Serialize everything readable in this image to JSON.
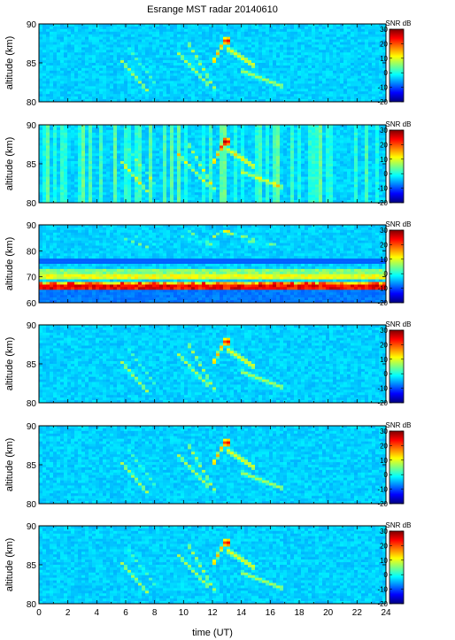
{
  "title": "Esrange MST radar 20140610",
  "xlabel": "time (UT)",
  "xticks": [
    "0",
    "2",
    "4",
    "6",
    "8",
    "10",
    "12",
    "14",
    "16",
    "18",
    "20",
    "22",
    "24"
  ],
  "colorbar": {
    "label": "SNR dB",
    "ticks": [
      "30",
      "20",
      "10",
      "0",
      "-10",
      "-20"
    ],
    "colors": [
      "#00007f",
      "#0000ff",
      "#007fff",
      "#00ffff",
      "#7fff7f",
      "#ffff00",
      "#ff7f00",
      "#ff0000",
      "#7f0000"
    ]
  },
  "chart_data": [
    {
      "type": "heatmap",
      "ylabel": "altitude (km)",
      "yticks": [
        "90",
        "85",
        "80"
      ],
      "ylim": [
        80,
        90
      ],
      "xlim": [
        0,
        24
      ],
      "clim": [
        -20,
        30
      ],
      "colorbar_label": "SNR dB"
    },
    {
      "type": "heatmap",
      "ylabel": "altitude (km)",
      "yticks": [
        "90",
        "85",
        "80"
      ],
      "ylim": [
        80,
        90
      ],
      "xlim": [
        0,
        24
      ],
      "clim": [
        -20,
        30
      ],
      "colorbar_label": "SNR dB"
    },
    {
      "type": "heatmap",
      "ylabel": "altitude (km)",
      "yticks": [
        "90",
        "80",
        "70",
        "60"
      ],
      "ylim": [
        60,
        90
      ],
      "xlim": [
        0,
        24
      ],
      "clim": [
        -20,
        30
      ],
      "colorbar_label": "SNR dB"
    },
    {
      "type": "heatmap",
      "ylabel": "altitude (km)",
      "yticks": [
        "90",
        "85",
        "80"
      ],
      "ylim": [
        80,
        90
      ],
      "xlim": [
        0,
        24
      ],
      "clim": [
        -20,
        30
      ],
      "colorbar_label": "SNR dB"
    },
    {
      "type": "heatmap",
      "ylabel": "altitude (km)",
      "yticks": [
        "90",
        "85",
        "80"
      ],
      "ylim": [
        80,
        90
      ],
      "xlim": [
        0,
        24
      ],
      "clim": [
        -20,
        30
      ],
      "colorbar_label": "SNR dB"
    },
    {
      "type": "heatmap",
      "ylabel": "altitude (km)",
      "yticks": [
        "90",
        "85",
        "80"
      ],
      "ylim": [
        80,
        90
      ],
      "xlim": [
        0,
        24
      ],
      "clim": [
        -20,
        30
      ],
      "colorbar_label": "SNR dB"
    }
  ]
}
